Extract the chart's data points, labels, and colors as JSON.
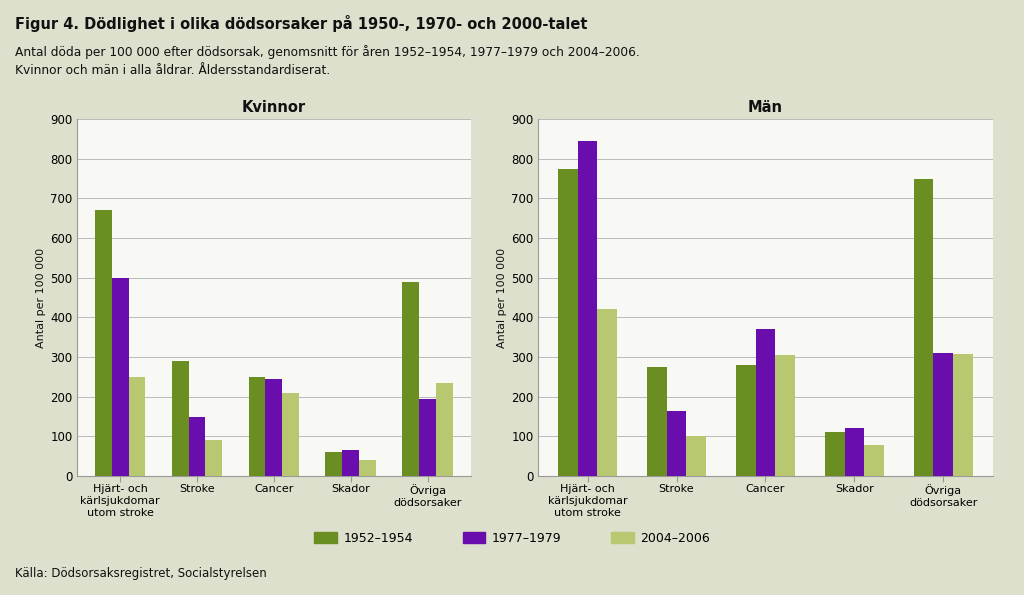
{
  "title_bold": "Figur 4. Dödlighet i olika dödsorsaker på 1950-, 1970- och 2000-talet",
  "subtitle_line1": "Antal döda per 100 000 efter dödsorsak, genomsnitt för åren 1952–1954, 1977–1979 och 2004–2006.",
  "subtitle_line2": "Kvinnor och män i alla åldrar. Åldersstandardiserat.",
  "source": "Källa: Dödsorsaksregistret, Socialstyrelsen",
  "ylabel": "Antal per 100 000",
  "ylim": [
    0,
    900
  ],
  "yticks": [
    0,
    100,
    200,
    300,
    400,
    500,
    600,
    700,
    800,
    900
  ],
  "categories": [
    "Hjärt- och\nkärlsjukdomar\nutom stroke",
    "Stroke",
    "Cancer",
    "Skador",
    "Övriga\ndödsorsaker"
  ],
  "legend_labels": [
    "1952–1954",
    "1977–1979",
    "2004–2006"
  ],
  "color_1952": "#6b8e23",
  "color_1977": "#6a0dad",
  "color_2004": "#b8c870",
  "kvinnor_title": "Kvinnor",
  "man_title": "Män",
  "kvinnor_data": {
    "1952": [
      670,
      290,
      250,
      60,
      490
    ],
    "1977": [
      500,
      150,
      245,
      65,
      195
    ],
    "2004": [
      250,
      90,
      210,
      40,
      235
    ]
  },
  "man_data": {
    "1952": [
      775,
      275,
      280,
      110,
      750
    ],
    "1977": [
      845,
      165,
      370,
      120,
      310
    ],
    "2004": [
      420,
      100,
      305,
      78,
      308
    ]
  },
  "background_color": "#dde0cc",
  "plot_bg_color": "#f8f8f4",
  "bar_width": 0.22,
  "grid_color": "#bbbbbb"
}
